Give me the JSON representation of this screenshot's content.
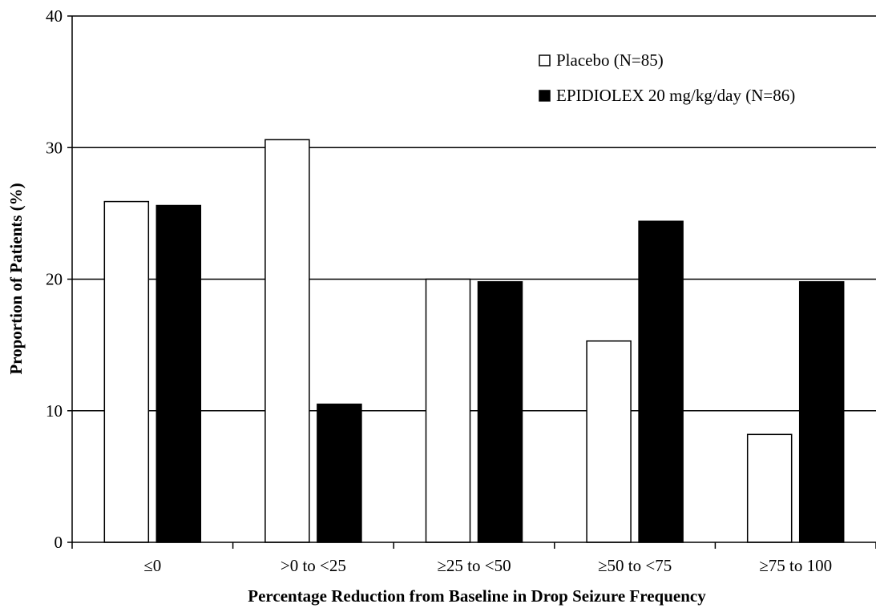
{
  "chart_data": {
    "type": "bar",
    "title": "",
    "xlabel": "Percentage Reduction from Baseline in Drop Seizure Frequency",
    "ylabel": "Proportion of Patients (%)",
    "ylim": [
      0,
      40
    ],
    "yticks": [
      "0",
      "10",
      "20",
      "30",
      "40"
    ],
    "grid": "horizontal",
    "legend_position": "top-right",
    "categories": [
      "≤0",
      ">0 to <25",
      "≥25 to <50",
      "≥50 to <75",
      "≥75 to 100"
    ],
    "series": [
      {
        "name": "Placebo (N=85)",
        "values": [
          25.9,
          30.6,
          20.0,
          15.3,
          8.2
        ],
        "color": "#ffffff"
      },
      {
        "name": "EPIDIOLEX 20 mg/kg/day (N=86)",
        "values": [
          25.6,
          10.5,
          19.8,
          24.4,
          19.8
        ],
        "color": "#000000"
      }
    ]
  }
}
